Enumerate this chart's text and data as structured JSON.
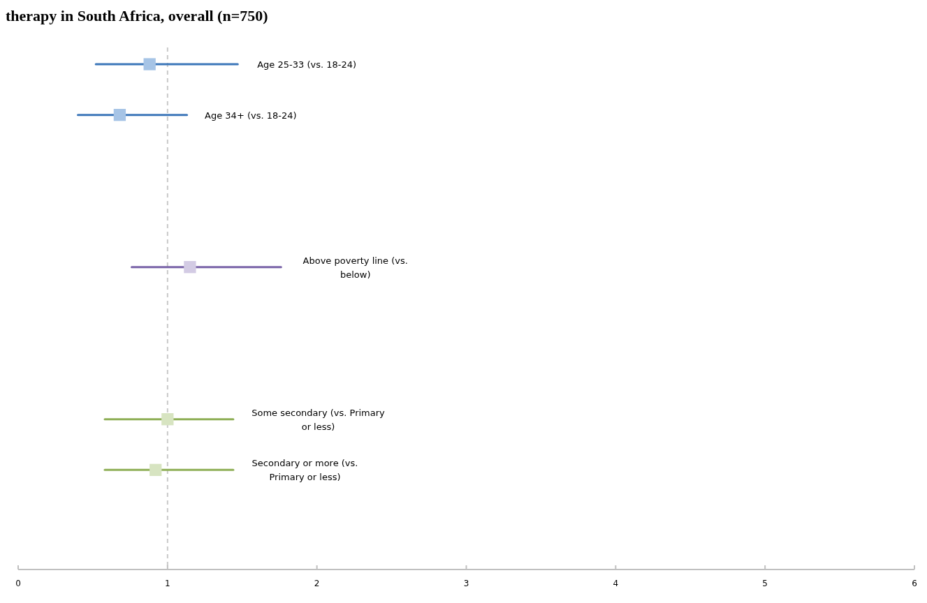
{
  "chart_data": {
    "type": "scatter",
    "orientation": "horizontal",
    "title": "therapy in South Africa, overall (n=750)",
    "categories": [
      "Age 25-33 (vs. 18-24)",
      "Age 34+ (vs. 18-24)",
      null,
      null,
      "Above poverty line (vs. below)",
      null,
      null,
      "Some secondary (vs. Primary or less)",
      "Secondary or more (vs. Primary or less)",
      null
    ],
    "series": [
      {
        "color": "#a6c4e6",
        "values": [
          0.88,
          0.68,
          null,
          null,
          null,
          null,
          null,
          null,
          null,
          null
        ],
        "errors": [
          [
            0.52,
            1.47
          ],
          [
            0.4,
            1.13
          ],
          null,
          null,
          null,
          null,
          null,
          null,
          null,
          null
        ]
      },
      {
        "color": "#d3cbe4",
        "values": [
          null,
          null,
          null,
          null,
          1.15,
          null,
          null,
          null,
          null,
          null
        ],
        "errors": [
          null,
          null,
          null,
          null,
          [
            0.76,
            1.76
          ],
          null,
          null,
          null,
          null,
          null
        ]
      },
      {
        "color": "#d7e4c1",
        "values": [
          null,
          null,
          null,
          null,
          null,
          null,
          null,
          1.0,
          0.92,
          null
        ],
        "errors": [
          null,
          null,
          null,
          null,
          null,
          null,
          null,
          [
            0.58,
            1.44
          ],
          [
            0.58,
            1.44
          ],
          null
        ]
      }
    ],
    "xlim": [
      0,
      6
    ],
    "xticks": [
      0,
      1,
      2,
      3,
      4,
      5,
      6
    ],
    "ref_lines": [
      {
        "axis": "x",
        "value": 1,
        "color": "#c8c8c8",
        "line_style": "dashed"
      }
    ],
    "marker": "square"
  }
}
